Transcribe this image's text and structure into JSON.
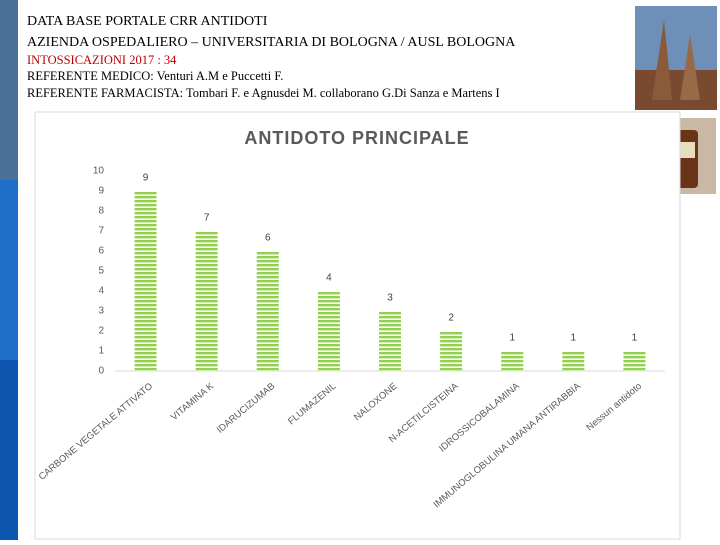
{
  "header": {
    "title": "DATA BASE PORTALE CRR ANTIDOTI",
    "subtitle": "AZIENDA OSPEDALIERO – UNIVERSITARIA DI BOLOGNA / AUSL BOLOGNA",
    "cases": "INTOSSICAZIONI 2017 : 34",
    "doctor": "REFERENTE MEDICO: Venturi A.M e Puccetti F.",
    "pharmacist": "REFERENTE FARMACISTA: Tombari F. e Agnusdei M. collaborano G.Di Sanza e Martens I"
  },
  "chart_data": {
    "type": "bar",
    "title": "ANTIDOTO PRINCIPALE",
    "categories": [
      "CARBONE VEGETALE ATTIVATO",
      "VITAMINA K",
      "IDARUCIZUMAB",
      "FLUMAZENIL",
      "NALOXONE",
      "N-ACETILCISTEINA",
      "IDROSSICOBALAMINA",
      "IMMUNOGLOBULINA UMANA ANTIRABBIA",
      "Nessun antidoto"
    ],
    "values": [
      9,
      7,
      6,
      4,
      3,
      2,
      1,
      1,
      1
    ],
    "color": "#92d050",
    "ylim": [
      0,
      10
    ],
    "yticks": [
      0,
      1,
      2,
      3,
      4,
      5,
      6,
      7,
      8,
      9,
      10
    ],
    "grid": false
  }
}
